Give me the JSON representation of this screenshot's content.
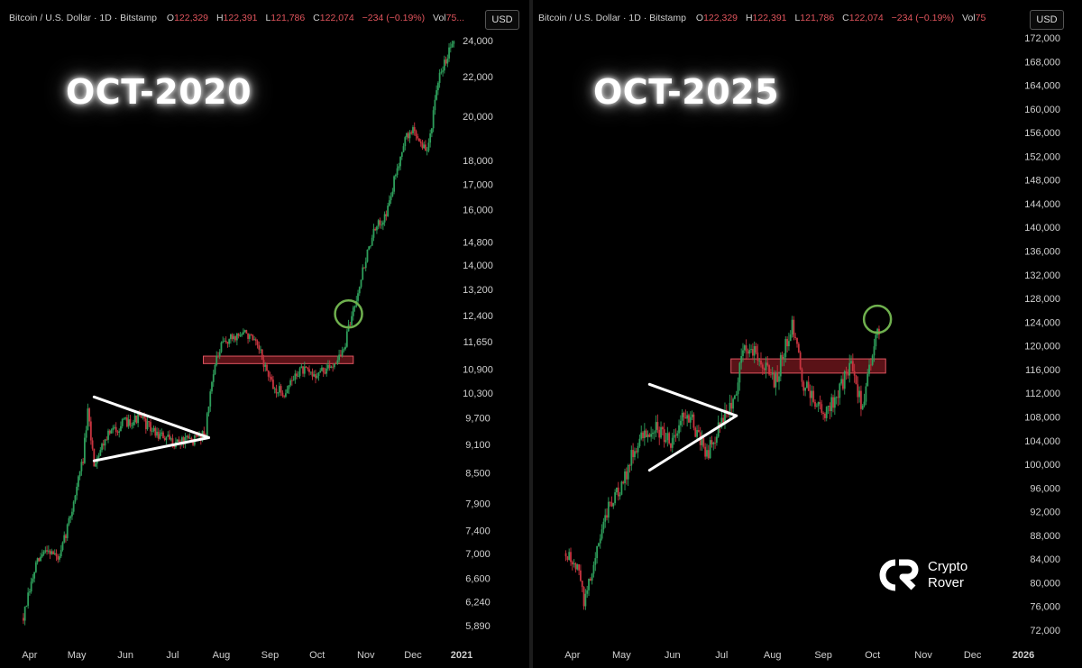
{
  "colors": {
    "up": "#2e9e5b",
    "down": "#c8343f",
    "triangle": "#ffffff",
    "circle": "#6fb04e",
    "zone_fill": "#8a1c24",
    "zone_stroke": "#e05560"
  },
  "legend": {
    "title": "Bitcoin / U.S. Dollar · 1D · Bitstamp",
    "o_label": "O",
    "o_value": "122,329",
    "h_label": "H",
    "h_value": "122,391",
    "l_label": "L",
    "l_value": "121,786",
    "c_label": "C",
    "c_value": "122,074",
    "change": "−234 (−0.19%)",
    "vol_label": "Vol",
    "vol_value_left": "75...",
    "vol_value_right": "75"
  },
  "currency_button": "USD",
  "logo": {
    "line1": "Crypto",
    "line2": "Rover"
  },
  "chart_data": [
    {
      "type": "candlestick",
      "title": "OCT-2020",
      "currency": "USD",
      "y_scale": "log",
      "ylim": [
        5700,
        25100
      ],
      "y_ticks": [
        "24,000",
        "22,000",
        "20,000",
        "18,000",
        "17,000",
        "16,000",
        "14,800",
        "14,000",
        "13,200",
        "12,400",
        "11,650",
        "10,900",
        "10,300",
        "9,700",
        "9,100",
        "8,500",
        "7,900",
        "7,400",
        "7,000",
        "6,600",
        "6,240",
        "5,890"
      ],
      "x_labels": [
        "Apr",
        "May",
        "Jun",
        "Jul",
        "Aug",
        "Sep",
        "Oct",
        "Nov",
        "Dec",
        "2021"
      ],
      "path": [
        [
          "2020-03-28",
          6000
        ],
        [
          "2020-04-05",
          6800
        ],
        [
          "2020-04-12",
          7100
        ],
        [
          "2020-04-20",
          6900
        ],
        [
          "2020-04-28",
          7800
        ],
        [
          "2020-05-05",
          8800
        ],
        [
          "2020-05-08",
          9800
        ],
        [
          "2020-05-12",
          8700
        ],
        [
          "2020-05-20",
          9300
        ],
        [
          "2020-06-01",
          9600
        ],
        [
          "2020-06-10",
          9700
        ],
        [
          "2020-06-20",
          9350
        ],
        [
          "2020-07-01",
          9150
        ],
        [
          "2020-07-15",
          9200
        ],
        [
          "2020-07-22",
          9400
        ],
        [
          "2020-07-27",
          10900
        ],
        [
          "2020-08-02",
          11600
        ],
        [
          "2020-08-10",
          11800
        ],
        [
          "2020-08-17",
          11900
        ],
        [
          "2020-08-25",
          11400
        ],
        [
          "2020-09-03",
          10400
        ],
        [
          "2020-09-10",
          10300
        ],
        [
          "2020-09-20",
          10900
        ],
        [
          "2020-09-28",
          10750
        ],
        [
          "2020-10-08",
          10900
        ],
        [
          "2020-10-18",
          11400
        ],
        [
          "2020-10-25",
          12800
        ],
        [
          "2020-11-05",
          15000
        ],
        [
          "2020-11-15",
          16000
        ],
        [
          "2020-11-25",
          18800
        ],
        [
          "2020-12-01",
          19400
        ],
        [
          "2020-12-10",
          18300
        ],
        [
          "2020-12-18",
          22000
        ],
        [
          "2020-12-28",
          24500
        ]
      ],
      "support_zone": [
        11050,
        11250
      ],
      "triangle": {
        "start": "2020-05-12",
        "apex": "2020-07-24",
        "upper_start": 10200,
        "lower_start": 8750,
        "apex_price": 9250
      },
      "breakout_circle": {
        "date": "2020-10-21",
        "price": 12450
      }
    },
    {
      "type": "candlestick",
      "title": "OCT-2025",
      "currency": "USD",
      "y_scale": "linear",
      "ylim": [
        69500,
        174500
      ],
      "y_ticks": [
        "172,000",
        "168,000",
        "164,000",
        "160,000",
        "156,000",
        "152,000",
        "148,000",
        "144,000",
        "140,000",
        "136,000",
        "132,000",
        "128,000",
        "124,000",
        "120,000",
        "116,000",
        "112,000",
        "108,000",
        "104,000",
        "100,000",
        "96,000",
        "92,000",
        "88,000",
        "84,000",
        "80,000",
        "76,000",
        "72,000"
      ],
      "x_labels": [
        "Apr",
        "May",
        "Jun",
        "Jul",
        "Aug",
        "Sep",
        "Oct",
        "Nov",
        "Dec",
        "2026"
      ],
      "path": [
        [
          "2025-03-28",
          85000
        ],
        [
          "2025-04-05",
          82000
        ],
        [
          "2025-04-08",
          76500
        ],
        [
          "2025-04-15",
          84500
        ],
        [
          "2025-04-24",
          93500
        ],
        [
          "2025-05-01",
          96000
        ],
        [
          "2025-05-09",
          103000
        ],
        [
          "2025-05-20",
          106500
        ],
        [
          "2025-05-31",
          104000
        ],
        [
          "2025-06-10",
          109000
        ],
        [
          "2025-06-22",
          101500
        ],
        [
          "2025-06-30",
          107000
        ],
        [
          "2025-07-09",
          111000
        ],
        [
          "2025-07-14",
          120000
        ],
        [
          "2025-07-22",
          119000
        ],
        [
          "2025-08-02",
          113500
        ],
        [
          "2025-08-13",
          123500
        ],
        [
          "2025-08-20",
          113500
        ],
        [
          "2025-09-01",
          108500
        ],
        [
          "2025-09-10",
          112000
        ],
        [
          "2025-09-18",
          117000
        ],
        [
          "2025-09-25",
          109500
        ],
        [
          "2025-10-01",
          118500
        ],
        [
          "2025-10-06",
          123500
        ]
      ],
      "support_zone": [
        115400,
        117800
      ],
      "triangle": {
        "start": "2025-05-18",
        "apex": "2025-07-10",
        "upper_start": 113500,
        "lower_start": 99000,
        "apex_price": 108200
      },
      "breakout_circle": {
        "date": "2025-10-04",
        "price": 124500
      }
    }
  ]
}
